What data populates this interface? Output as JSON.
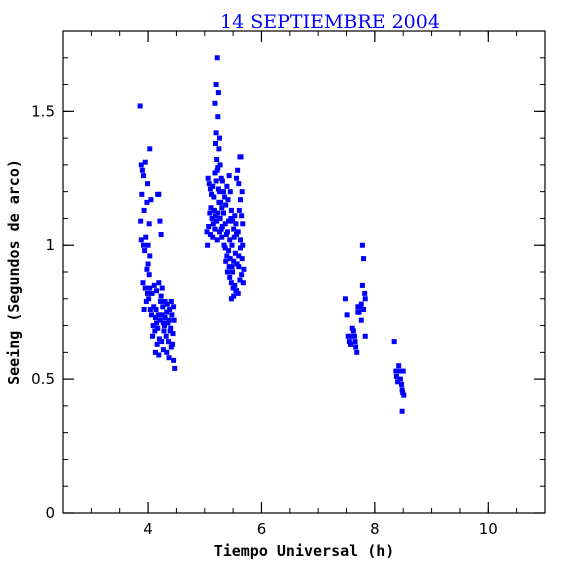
{
  "chart_data": {
    "type": "scatter",
    "title": "14 SEPTIEMBRE 2004",
    "xlabel": "Tiempo Universal (h)",
    "ylabel": "Seeing (Segundos de arco)",
    "xlim": [
      2.5,
      11.0
    ],
    "ylim": [
      0,
      1.8
    ],
    "x_ticks": [
      4,
      6,
      8,
      10
    ],
    "y_ticks": [
      0,
      0.5,
      1,
      1.5
    ],
    "x_tick_labels": [
      "4",
      "6",
      "8",
      "10"
    ],
    "y_tick_labels": [
      "0",
      "0.5",
      "1",
      "1.5"
    ],
    "x_minor_step": 0.5,
    "y_minor_step": 0.1,
    "marker": "square",
    "color": "#0000ff",
    "points": [
      [
        3.86,
        1.52
      ],
      [
        3.88,
        1.3
      ],
      [
        3.9,
        1.28
      ],
      [
        3.92,
        1.26
      ],
      [
        3.95,
        1.31
      ],
      [
        3.99,
        1.23
      ],
      [
        4.03,
        1.36
      ],
      [
        3.89,
        1.19
      ],
      [
        3.93,
        1.13
      ],
      [
        3.98,
        1.16
      ],
      [
        3.87,
        1.09
      ],
      [
        4.05,
        1.17
      ],
      [
        4.02,
        1.08
      ],
      [
        3.88,
        1.02
      ],
      [
        3.92,
        1.0
      ],
      [
        3.96,
        1.03
      ],
      [
        4.0,
        1.0
      ],
      [
        4.03,
        0.96
      ],
      [
        3.94,
        0.98
      ],
      [
        4.0,
        0.93
      ],
      [
        3.98,
        0.91
      ],
      [
        4.02,
        0.89
      ],
      [
        3.91,
        0.86
      ],
      [
        3.95,
        0.84
      ],
      [
        3.99,
        0.82
      ],
      [
        4.03,
        0.84
      ],
      [
        3.97,
        0.79
      ],
      [
        4.01,
        0.8
      ],
      [
        3.93,
        0.76
      ],
      [
        4.04,
        0.76
      ],
      [
        4.07,
        0.82
      ],
      [
        4.11,
        0.85
      ],
      [
        4.15,
        0.83
      ],
      [
        4.19,
        0.86
      ],
      [
        4.23,
        0.81
      ],
      [
        4.17,
        1.19
      ],
      [
        4.19,
        1.19
      ],
      [
        4.21,
        1.09
      ],
      [
        4.23,
        1.04
      ],
      [
        4.06,
        0.74
      ],
      [
        4.09,
        0.7
      ],
      [
        4.13,
        0.73
      ],
      [
        4.17,
        0.69
      ],
      [
        4.21,
        0.72
      ],
      [
        4.25,
        0.74
      ],
      [
        4.29,
        0.7
      ],
      [
        4.33,
        0.75
      ],
      [
        4.37,
        0.72
      ],
      [
        4.41,
        0.79
      ],
      [
        4.45,
        0.77
      ],
      [
        4.1,
        0.77
      ],
      [
        4.14,
        0.76
      ],
      [
        4.18,
        0.74
      ],
      [
        4.22,
        0.79
      ],
      [
        4.26,
        0.77
      ],
      [
        4.3,
        0.79
      ],
      [
        4.34,
        0.78
      ],
      [
        4.38,
        0.76
      ],
      [
        4.42,
        0.74
      ],
      [
        4.46,
        0.72
      ],
      [
        4.08,
        0.66
      ],
      [
        4.12,
        0.68
      ],
      [
        4.16,
        0.63
      ],
      [
        4.2,
        0.65
      ],
      [
        4.24,
        0.64
      ],
      [
        4.28,
        0.68
      ],
      [
        4.32,
        0.66
      ],
      [
        4.36,
        0.64
      ],
      [
        4.4,
        0.69
      ],
      [
        4.44,
        0.67
      ],
      [
        4.13,
        0.6
      ],
      [
        4.19,
        0.59
      ],
      [
        4.27,
        0.61
      ],
      [
        4.33,
        0.6
      ],
      [
        4.37,
        0.58
      ],
      [
        4.41,
        0.62
      ],
      [
        4.45,
        0.57
      ],
      [
        4.47,
        0.54
      ],
      [
        4.25,
        0.84
      ],
      [
        4.3,
        0.73
      ],
      [
        4.35,
        0.71
      ],
      [
        4.39,
        0.68
      ],
      [
        4.43,
        0.63
      ],
      [
        4.15,
        0.71
      ],
      [
        4.27,
        0.71
      ],
      [
        5.06,
        1.25
      ],
      [
        5.08,
        1.23
      ],
      [
        5.1,
        1.21
      ],
      [
        5.12,
        1.19
      ],
      [
        5.14,
        1.22
      ],
      [
        5.16,
        1.18
      ],
      [
        5.18,
        1.27
      ],
      [
        5.2,
        1.24
      ],
      [
        5.22,
        1.28
      ],
      [
        5.24,
        1.21
      ],
      [
        5.26,
        1.2
      ],
      [
        5.28,
        1.16
      ],
      [
        5.3,
        1.14
      ],
      [
        5.09,
        1.12
      ],
      [
        5.11,
        1.14
      ],
      [
        5.13,
        1.1
      ],
      [
        5.15,
        1.08
      ],
      [
        5.17,
        1.13
      ],
      [
        5.19,
        1.11
      ],
      [
        5.21,
        1.09
      ],
      [
        5.23,
        1.12
      ],
      [
        5.25,
        1.16
      ],
      [
        5.27,
        1.1
      ],
      [
        5.29,
        1.06
      ],
      [
        5.31,
        1.07
      ],
      [
        5.33,
        1.12
      ],
      [
        5.04,
        1.05
      ],
      [
        5.07,
        1.07
      ],
      [
        5.05,
        1.0
      ],
      [
        5.1,
        1.04
      ],
      [
        5.14,
        1.03
      ],
      [
        5.18,
        1.06
      ],
      [
        5.22,
        1.02
      ],
      [
        5.26,
        1.05
      ],
      [
        5.3,
        1.03
      ],
      [
        5.34,
        1.0
      ],
      [
        5.38,
        1.04
      ],
      [
        5.42,
        1.09
      ],
      [
        5.46,
        1.1
      ],
      [
        5.22,
        1.7
      ],
      [
        5.2,
        1.6
      ],
      [
        5.24,
        1.57
      ],
      [
        5.18,
        1.53
      ],
      [
        5.23,
        1.48
      ],
      [
        5.2,
        1.42
      ],
      [
        5.26,
        1.4
      ],
      [
        5.19,
        1.38
      ],
      [
        5.25,
        1.36
      ],
      [
        5.21,
        1.32
      ],
      [
        5.27,
        1.3
      ],
      [
        5.23,
        1.29
      ],
      [
        5.29,
        1.25
      ],
      [
        5.31,
        1.24
      ],
      [
        5.33,
        1.2
      ],
      [
        5.35,
        1.18
      ],
      [
        5.37,
        1.15
      ],
      [
        5.39,
        1.22
      ],
      [
        5.41,
        1.17
      ],
      [
        5.43,
        1.26
      ],
      [
        5.45,
        1.2
      ],
      [
        5.47,
        1.13
      ],
      [
        5.49,
        1.09
      ],
      [
        5.51,
        1.06
      ],
      [
        5.53,
        1.11
      ],
      [
        5.55,
        1.08
      ],
      [
        5.36,
        0.99
      ],
      [
        5.39,
        0.96
      ],
      [
        5.42,
        0.98
      ],
      [
        5.45,
        0.95
      ],
      [
        5.48,
        0.92
      ],
      [
        5.51,
        0.94
      ],
      [
        5.54,
        0.97
      ],
      [
        5.57,
        0.93
      ],
      [
        5.6,
        0.96
      ],
      [
        5.63,
        0.99
      ],
      [
        5.66,
        0.95
      ],
      [
        5.69,
        0.91
      ],
      [
        5.4,
        0.9
      ],
      [
        5.44,
        0.88
      ],
      [
        5.47,
        0.86
      ],
      [
        5.5,
        0.84
      ],
      [
        5.53,
        0.85
      ],
      [
        5.56,
        0.83
      ],
      [
        5.59,
        0.82
      ],
      [
        5.62,
        0.87
      ],
      [
        5.65,
        0.89
      ],
      [
        5.68,
        0.86
      ],
      [
        5.47,
        0.8
      ],
      [
        5.51,
        0.81
      ],
      [
        5.55,
        0.83
      ],
      [
        5.6,
        0.92
      ],
      [
        5.56,
        1.25
      ],
      [
        5.58,
        1.28
      ],
      [
        5.6,
        1.23
      ],
      [
        5.62,
        1.33
      ],
      [
        5.64,
        1.33
      ],
      [
        5.66,
        1.2
      ],
      [
        5.63,
        1.17
      ],
      [
        5.61,
        1.13
      ],
      [
        5.65,
        1.11
      ],
      [
        5.67,
        1.08
      ],
      [
        5.59,
        1.05
      ],
      [
        5.63,
        1.02
      ],
      [
        5.67,
        1.0
      ],
      [
        5.36,
        1.08
      ],
      [
        5.4,
        1.05
      ],
      [
        5.44,
        1.02
      ],
      [
        5.48,
        1.0
      ],
      [
        5.52,
        1.03
      ],
      [
        5.56,
        1.04
      ],
      [
        5.37,
        0.94
      ],
      [
        5.43,
        0.92
      ],
      [
        5.49,
        0.9
      ],
      [
        7.48,
        0.8
      ],
      [
        7.51,
        0.74
      ],
      [
        7.53,
        0.66
      ],
      [
        7.55,
        0.64
      ],
      [
        7.57,
        0.63
      ],
      [
        7.6,
        0.69
      ],
      [
        7.62,
        0.68
      ],
      [
        7.64,
        0.66
      ],
      [
        7.66,
        0.62
      ],
      [
        7.68,
        0.6
      ],
      [
        7.7,
        0.77
      ],
      [
        7.72,
        0.75
      ],
      [
        7.74,
        0.77
      ],
      [
        7.76,
        0.72
      ],
      [
        7.78,
        0.85
      ],
      [
        7.78,
        1.0
      ],
      [
        7.8,
        0.95
      ],
      [
        7.82,
        0.82
      ],
      [
        7.83,
        0.8
      ],
      [
        7.83,
        0.66
      ],
      [
        7.8,
        0.76
      ],
      [
        7.76,
        0.78
      ],
      [
        7.7,
        0.75
      ],
      [
        7.65,
        0.64
      ],
      [
        7.58,
        0.66
      ],
      [
        8.34,
        0.64
      ],
      [
        8.37,
        0.53
      ],
      [
        8.38,
        0.51
      ],
      [
        8.4,
        0.49
      ],
      [
        8.42,
        0.55
      ],
      [
        8.44,
        0.53
      ],
      [
        8.45,
        0.5
      ],
      [
        8.47,
        0.48
      ],
      [
        8.48,
        0.46
      ],
      [
        8.49,
        0.45
      ],
      [
        8.5,
        0.53
      ],
      [
        8.51,
        0.44
      ],
      [
        8.48,
        0.38
      ]
    ]
  }
}
